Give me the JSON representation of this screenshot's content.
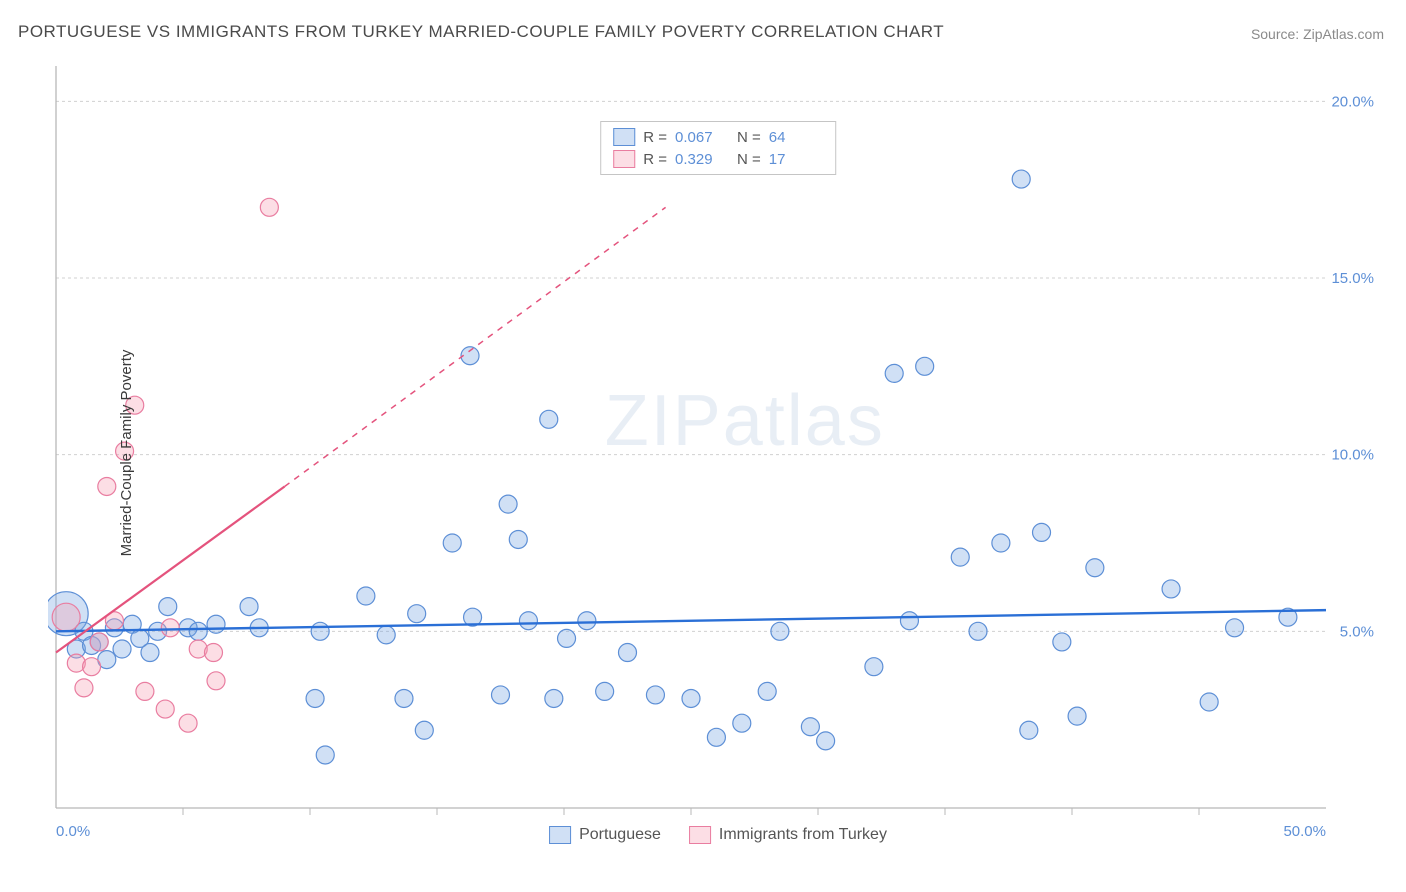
{
  "title": "PORTUGUESE VS IMMIGRANTS FROM TURKEY MARRIED-COUPLE FAMILY POVERTY CORRELATION CHART",
  "source": "Source: ZipAtlas.com",
  "ylabel": "Married-Couple Family Poverty",
  "watermark": "ZIPatlas",
  "chart": {
    "type": "scatter",
    "xlim": [
      0,
      50
    ],
    "ylim": [
      0,
      21
    ],
    "x_ticks": [
      0,
      50
    ],
    "x_tick_labels": [
      "0.0%",
      "50.0%"
    ],
    "x_minor_ticks": [
      5,
      10,
      15,
      20,
      25,
      30,
      35,
      40,
      45
    ],
    "y_ticks": [
      5,
      10,
      15,
      20
    ],
    "y_tick_labels": [
      "5.0%",
      "10.0%",
      "15.0%",
      "20.0%"
    ],
    "background_color": "#ffffff",
    "grid_color": "#d0d0d0",
    "axis_color": "#b8b8b8",
    "tick_label_color": "#5d8fd6",
    "marker_radius_default": 9,
    "series": [
      {
        "name": "Portuguese",
        "legend_label": "Portuguese",
        "fill": "rgba(120,165,225,0.35)",
        "stroke": "#5d8fd6",
        "stroke_width": 1.2,
        "R": "0.067",
        "N": "64",
        "trend": {
          "x1": 0,
          "y1": 5.0,
          "x2": 50,
          "y2": 5.6,
          "color": "#2a6fd6",
          "width": 2.4,
          "dash": "none"
        },
        "points": [
          {
            "x": 0.4,
            "y": 5.5,
            "r": 22
          },
          {
            "x": 0.8,
            "y": 4.5
          },
          {
            "x": 1.1,
            "y": 5.0
          },
          {
            "x": 1.4,
            "y": 4.6
          },
          {
            "x": 1.7,
            "y": 4.7
          },
          {
            "x": 2.0,
            "y": 4.2
          },
          {
            "x": 2.3,
            "y": 5.1
          },
          {
            "x": 2.6,
            "y": 4.5
          },
          {
            "x": 3.0,
            "y": 5.2
          },
          {
            "x": 3.3,
            "y": 4.8
          },
          {
            "x": 3.7,
            "y": 4.4
          },
          {
            "x": 4.0,
            "y": 5.0
          },
          {
            "x": 4.4,
            "y": 5.7
          },
          {
            "x": 5.2,
            "y": 5.1
          },
          {
            "x": 5.6,
            "y": 5.0
          },
          {
            "x": 6.3,
            "y": 5.2
          },
          {
            "x": 7.6,
            "y": 5.7
          },
          {
            "x": 8.0,
            "y": 5.1
          },
          {
            "x": 10.2,
            "y": 3.1
          },
          {
            "x": 10.4,
            "y": 5.0
          },
          {
            "x": 10.6,
            "y": 1.5
          },
          {
            "x": 12.2,
            "y": 6.0
          },
          {
            "x": 13.0,
            "y": 4.9
          },
          {
            "x": 13.7,
            "y": 3.1
          },
          {
            "x": 14.2,
            "y": 5.5
          },
          {
            "x": 14.5,
            "y": 2.2
          },
          {
            "x": 15.6,
            "y": 7.5
          },
          {
            "x": 16.3,
            "y": 12.8
          },
          {
            "x": 16.4,
            "y": 5.4
          },
          {
            "x": 17.8,
            "y": 8.6
          },
          {
            "x": 18.2,
            "y": 7.6
          },
          {
            "x": 17.5,
            "y": 3.2
          },
          {
            "x": 18.6,
            "y": 5.3
          },
          {
            "x": 19.4,
            "y": 11.0
          },
          {
            "x": 19.6,
            "y": 3.1
          },
          {
            "x": 20.1,
            "y": 4.8
          },
          {
            "x": 20.9,
            "y": 5.3
          },
          {
            "x": 21.6,
            "y": 3.3
          },
          {
            "x": 22.5,
            "y": 4.4
          },
          {
            "x": 23.6,
            "y": 3.2
          },
          {
            "x": 25.0,
            "y": 3.1
          },
          {
            "x": 26.0,
            "y": 2.0
          },
          {
            "x": 27.0,
            "y": 2.4
          },
          {
            "x": 28.0,
            "y": 3.3
          },
          {
            "x": 28.5,
            "y": 5.0
          },
          {
            "x": 29.7,
            "y": 2.3
          },
          {
            "x": 30.3,
            "y": 1.9
          },
          {
            "x": 32.2,
            "y": 4.0
          },
          {
            "x": 33.0,
            "y": 12.3
          },
          {
            "x": 33.6,
            "y": 5.3
          },
          {
            "x": 34.2,
            "y": 12.5
          },
          {
            "x": 35.6,
            "y": 7.1
          },
          {
            "x": 36.3,
            "y": 5.0
          },
          {
            "x": 37.2,
            "y": 7.5
          },
          {
            "x": 38.0,
            "y": 17.8
          },
          {
            "x": 38.3,
            "y": 2.2
          },
          {
            "x": 38.8,
            "y": 7.8
          },
          {
            "x": 39.6,
            "y": 4.7
          },
          {
            "x": 40.2,
            "y": 2.6
          },
          {
            "x": 40.9,
            "y": 6.8
          },
          {
            "x": 43.9,
            "y": 6.2
          },
          {
            "x": 45.4,
            "y": 3.0
          },
          {
            "x": 46.4,
            "y": 5.1
          },
          {
            "x": 48.5,
            "y": 5.4
          }
        ]
      },
      {
        "name": "Immigrants from Turkey",
        "legend_label": "Immigrants from Turkey",
        "fill": "rgba(245,160,180,0.35)",
        "stroke": "#e97da0",
        "stroke_width": 1.2,
        "R": "0.329",
        "N": "17",
        "trend": {
          "x1": 0,
          "y1": 4.4,
          "x2": 9.0,
          "y2": 9.1,
          "color": "#e4537d",
          "width": 2.2,
          "dash": "none",
          "ext_x2": 24,
          "ext_y2": 17.0,
          "ext_dash": "6 6"
        },
        "points": [
          {
            "x": 0.4,
            "y": 5.4,
            "r": 14
          },
          {
            "x": 0.8,
            "y": 4.1
          },
          {
            "x": 1.1,
            "y": 3.4
          },
          {
            "x": 1.4,
            "y": 4.0
          },
          {
            "x": 1.7,
            "y": 4.7
          },
          {
            "x": 2.0,
            "y": 9.1
          },
          {
            "x": 2.3,
            "y": 5.3
          },
          {
            "x": 2.7,
            "y": 10.1
          },
          {
            "x": 3.1,
            "y": 11.4
          },
          {
            "x": 3.5,
            "y": 3.3
          },
          {
            "x": 4.3,
            "y": 2.8
          },
          {
            "x": 4.5,
            "y": 5.1
          },
          {
            "x": 5.2,
            "y": 2.4
          },
          {
            "x": 5.6,
            "y": 4.5
          },
          {
            "x": 6.2,
            "y": 4.4
          },
          {
            "x": 6.3,
            "y": 3.6
          },
          {
            "x": 8.4,
            "y": 17.0
          }
        ]
      }
    ]
  },
  "top_legend": {
    "rows": [
      {
        "swatch": "blue",
        "r_label": "R =",
        "r_val": "0.067",
        "n_label": "N =",
        "n_val": "64"
      },
      {
        "swatch": "pink",
        "r_label": "R =",
        "r_val": "0.329",
        "n_label": "N =",
        "n_val": "17"
      }
    ]
  },
  "bottom_legend": {
    "items": [
      {
        "swatch": "blue",
        "label": "Portuguese"
      },
      {
        "swatch": "pink",
        "label": "Immigrants from Turkey"
      }
    ]
  }
}
